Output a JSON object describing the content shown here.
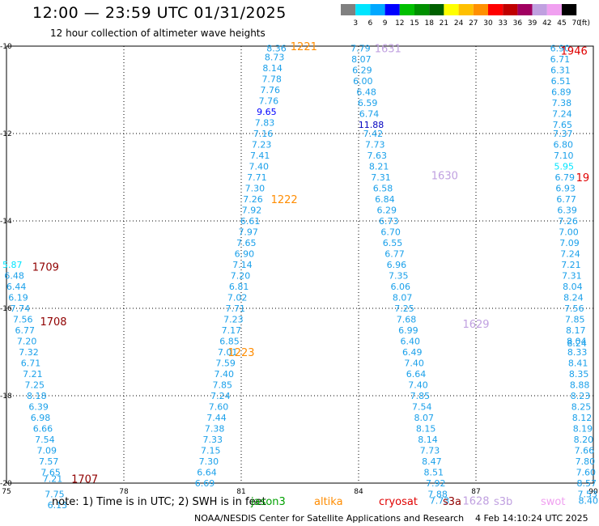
{
  "title": "12:00 — 23:59 UTC 01/31/2025",
  "subtitle": "12 hour collection of altimeter wave heights",
  "note": "note:  1) Time is in UTC; 2) SWH is in feet",
  "credit": "NOAA/NESDIS Center for Satellite Applications and Research",
  "generated": "4 Feb 14:10:24 UTC 2025",
  "satellites": [
    {
      "name": "jason3",
      "color": "#00a000"
    },
    {
      "name": "altika",
      "color": "#ff8c00"
    },
    {
      "name": "cryosat",
      "color": "#e00000"
    },
    {
      "name": "s3a",
      "color": "#900000"
    },
    {
      "name": "s3b",
      "color": "#c0a0e0"
    },
    {
      "name": "swot",
      "color": "#f0a0f0"
    }
  ],
  "colorbar": {
    "unit": "(ft)",
    "levels": [
      "3",
      "6",
      "9",
      "12",
      "15",
      "18",
      "21",
      "24",
      "27",
      "30",
      "33",
      "36",
      "39",
      "42",
      "45",
      "70"
    ],
    "colors": [
      "#808080",
      "#00e5ff",
      "#00a8ff",
      "#0000ff",
      "#00c000",
      "#009000",
      "#006000",
      "#ffff00",
      "#ffc000",
      "#ff9000",
      "#ff0000",
      "#c00000",
      "#a00060",
      "#c0a0e0",
      "#f0a0f0",
      "#000000"
    ]
  },
  "chart_data": {
    "type": "scatter",
    "title": "12:00 — 23:59 UTC 01/31/2025",
    "subtitle": "12 hour collection of altimeter wave heights",
    "x_ticks": [
      75,
      78,
      81,
      84,
      87,
      90
    ],
    "y_ticks": [
      -10,
      -12,
      -14,
      -16,
      -18,
      -20
    ],
    "xlim": [
      75,
      90
    ],
    "ylim": [
      -20,
      -10
    ],
    "grid": true,
    "point_labels": [
      {
        "x": 81.9,
        "y": -10.05,
        "v": "8.36"
      },
      {
        "x": 81.85,
        "y": -10.25,
        "v": "8.73"
      },
      {
        "x": 81.8,
        "y": -10.5,
        "v": "8.14"
      },
      {
        "x": 81.78,
        "y": -10.75,
        "v": "7.78"
      },
      {
        "x": 81.74,
        "y": -11.0,
        "v": "7.76"
      },
      {
        "x": 81.7,
        "y": -11.25,
        "v": "7.76"
      },
      {
        "x": 81.65,
        "y": -11.5,
        "v": "9.65",
        "c": "#0000ff"
      },
      {
        "x": 81.6,
        "y": -11.75,
        "v": "7.83"
      },
      {
        "x": 81.56,
        "y": -12.0,
        "v": "7.16"
      },
      {
        "x": 81.52,
        "y": -12.25,
        "v": "7.23"
      },
      {
        "x": 81.48,
        "y": -12.5,
        "v": "7.41"
      },
      {
        "x": 81.45,
        "y": -12.75,
        "v": "7.40"
      },
      {
        "x": 81.4,
        "y": -13.0,
        "v": "7.71"
      },
      {
        "x": 81.35,
        "y": -13.25,
        "v": "7.30"
      },
      {
        "x": 81.3,
        "y": -13.5,
        "v": "7.26"
      },
      {
        "x": 81.27,
        "y": -13.75,
        "v": "7.92"
      },
      {
        "x": 81.23,
        "y": -14.0,
        "v": "6.61"
      },
      {
        "x": 81.18,
        "y": -14.25,
        "v": "7.97"
      },
      {
        "x": 81.13,
        "y": -14.5,
        "v": "7.65"
      },
      {
        "x": 81.08,
        "y": -14.75,
        "v": "6.90"
      },
      {
        "x": 81.03,
        "y": -15.0,
        "v": "7.14"
      },
      {
        "x": 80.98,
        "y": -15.25,
        "v": "7.20"
      },
      {
        "x": 80.94,
        "y": -15.5,
        "v": "6.81"
      },
      {
        "x": 80.9,
        "y": -15.75,
        "v": "7.02"
      },
      {
        "x": 80.85,
        "y": -16.0,
        "v": "7.71"
      },
      {
        "x": 80.8,
        "y": -16.25,
        "v": "7.23"
      },
      {
        "x": 80.75,
        "y": -16.5,
        "v": "7.17"
      },
      {
        "x": 80.7,
        "y": -16.75,
        "v": "6.85"
      },
      {
        "x": 80.65,
        "y": -17.0,
        "v": "7.01"
      },
      {
        "x": 80.6,
        "y": -17.25,
        "v": "7.59"
      },
      {
        "x": 80.56,
        "y": -17.5,
        "v": "7.40"
      },
      {
        "x": 80.52,
        "y": -17.75,
        "v": "7.85"
      },
      {
        "x": 80.47,
        "y": -18.0,
        "v": "7.24"
      },
      {
        "x": 80.42,
        "y": -18.25,
        "v": "7.60"
      },
      {
        "x": 80.37,
        "y": -18.5,
        "v": "7.44"
      },
      {
        "x": 80.32,
        "y": -18.75,
        "v": "7.38"
      },
      {
        "x": 80.27,
        "y": -19.0,
        "v": "7.33"
      },
      {
        "x": 80.22,
        "y": -19.25,
        "v": "7.15"
      },
      {
        "x": 80.17,
        "y": -19.5,
        "v": "7.30"
      },
      {
        "x": 80.12,
        "y": -19.75,
        "v": "6.64"
      },
      {
        "x": 80.07,
        "y": -20.0,
        "v": "6.69"
      },
      {
        "x": 84.05,
        "y": -10.05,
        "v": "7.79"
      },
      {
        "x": 84.07,
        "y": -10.3,
        "v": "8.07"
      },
      {
        "x": 84.09,
        "y": -10.55,
        "v": "6.29"
      },
      {
        "x": 84.11,
        "y": -10.8,
        "v": "6.00"
      },
      {
        "x": 84.2,
        "y": -11.05,
        "v": "6.48"
      },
      {
        "x": 84.23,
        "y": -11.3,
        "v": "6.59"
      },
      {
        "x": 84.27,
        "y": -11.55,
        "v": "6.74"
      },
      {
        "x": 84.32,
        "y": -11.8,
        "v": "11.88",
        "c": "#0000c0"
      },
      {
        "x": 84.37,
        "y": -12.0,
        "v": "7.42"
      },
      {
        "x": 84.42,
        "y": -12.25,
        "v": "7.73"
      },
      {
        "x": 84.47,
        "y": -12.5,
        "v": "7.63"
      },
      {
        "x": 84.52,
        "y": -12.75,
        "v": "8.21"
      },
      {
        "x": 84.57,
        "y": -13.0,
        "v": "7.31"
      },
      {
        "x": 84.62,
        "y": -13.25,
        "v": "6.58"
      },
      {
        "x": 84.67,
        "y": -13.5,
        "v": "6.84"
      },
      {
        "x": 84.72,
        "y": -13.75,
        "v": "6.29"
      },
      {
        "x": 84.77,
        "y": -14.0,
        "v": "6.73"
      },
      {
        "x": 84.82,
        "y": -14.25,
        "v": "6.70"
      },
      {
        "x": 84.87,
        "y": -14.5,
        "v": "6.55"
      },
      {
        "x": 84.92,
        "y": -14.75,
        "v": "6.77"
      },
      {
        "x": 84.97,
        "y": -15.0,
        "v": "6.96"
      },
      {
        "x": 85.02,
        "y": -15.25,
        "v": "7.35"
      },
      {
        "x": 85.07,
        "y": -15.5,
        "v": "6.06"
      },
      {
        "x": 85.12,
        "y": -15.75,
        "v": "8.07"
      },
      {
        "x": 85.17,
        "y": -16.0,
        "v": "7.25"
      },
      {
        "x": 85.22,
        "y": -16.25,
        "v": "7.68"
      },
      {
        "x": 85.27,
        "y": -16.5,
        "v": "6.99"
      },
      {
        "x": 85.32,
        "y": -16.75,
        "v": "6.40"
      },
      {
        "x": 85.37,
        "y": -17.0,
        "v": "6.49"
      },
      {
        "x": 85.42,
        "y": -17.25,
        "v": "7.40"
      },
      {
        "x": 85.47,
        "y": -17.5,
        "v": "6.64"
      },
      {
        "x": 85.52,
        "y": -17.75,
        "v": "7.40"
      },
      {
        "x": 85.57,
        "y": -18.0,
        "v": "7.85"
      },
      {
        "x": 85.62,
        "y": -18.25,
        "v": "7.54"
      },
      {
        "x": 85.67,
        "y": -18.5,
        "v": "8.07"
      },
      {
        "x": 85.72,
        "y": -18.75,
        "v": "8.15"
      },
      {
        "x": 85.77,
        "y": -19.0,
        "v": "8.14"
      },
      {
        "x": 85.82,
        "y": -19.25,
        "v": "7.73"
      },
      {
        "x": 85.87,
        "y": -19.5,
        "v": "8.47"
      },
      {
        "x": 85.92,
        "y": -19.75,
        "v": "8.51"
      },
      {
        "x": 85.97,
        "y": -20.0,
        "v": "7.92"
      },
      {
        "x": 86.02,
        "y": -20.25,
        "v": "7.88"
      },
      {
        "x": 86.07,
        "y": -20.4,
        "v": "7.73"
      },
      {
        "x": 89.15,
        "y": -10.05,
        "v": "6.90"
      },
      {
        "x": 89.15,
        "y": -10.3,
        "v": "6.71"
      },
      {
        "x": 89.16,
        "y": -10.55,
        "v": "6.31"
      },
      {
        "x": 89.17,
        "y": -10.8,
        "v": "6.51"
      },
      {
        "x": 89.18,
        "y": -11.05,
        "v": "6.89"
      },
      {
        "x": 89.19,
        "y": -11.3,
        "v": "7.38"
      },
      {
        "x": 89.2,
        "y": -11.55,
        "v": "7.24"
      },
      {
        "x": 89.21,
        "y": -11.8,
        "v": "7.65"
      },
      {
        "x": 89.22,
        "y": -12.0,
        "v": "7.37"
      },
      {
        "x": 89.23,
        "y": -12.25,
        "v": "6.80"
      },
      {
        "x": 89.24,
        "y": -12.5,
        "v": "7.10"
      },
      {
        "x": 89.25,
        "y": -12.75,
        "v": "5.95",
        "c": "#00e5ff"
      },
      {
        "x": 89.27,
        "y": -13.0,
        "v": "6.79"
      },
      {
        "x": 89.29,
        "y": -13.25,
        "v": "6.93"
      },
      {
        "x": 89.31,
        "y": -13.5,
        "v": "6.77"
      },
      {
        "x": 89.33,
        "y": -13.75,
        "v": "6.39"
      },
      {
        "x": 89.35,
        "y": -14.0,
        "v": "7.26"
      },
      {
        "x": 89.37,
        "y": -14.25,
        "v": "7.00"
      },
      {
        "x": 89.39,
        "y": -14.5,
        "v": "7.09"
      },
      {
        "x": 89.41,
        "y": -14.75,
        "v": "7.24"
      },
      {
        "x": 89.43,
        "y": -15.0,
        "v": "7.21"
      },
      {
        "x": 89.45,
        "y": -15.25,
        "v": "7.31"
      },
      {
        "x": 89.47,
        "y": -15.5,
        "v": "8.04"
      },
      {
        "x": 89.49,
        "y": -15.75,
        "v": "8.24"
      },
      {
        "x": 89.51,
        "y": -16.0,
        "v": "7.56"
      },
      {
        "x": 89.53,
        "y": -16.25,
        "v": "7.85"
      },
      {
        "x": 89.55,
        "y": -16.5,
        "v": "8.17"
      },
      {
        "x": 89.57,
        "y": -16.75,
        "v": "8.04"
      },
      {
        "x": 89.58,
        "y": -16.8,
        "v": "8.24"
      },
      {
        "x": 89.59,
        "y": -17.0,
        "v": "8.33"
      },
      {
        "x": 89.61,
        "y": -17.25,
        "v": "8.41"
      },
      {
        "x": 89.63,
        "y": -17.5,
        "v": "8.35"
      },
      {
        "x": 89.65,
        "y": -17.75,
        "v": "8.88"
      },
      {
        "x": 89.67,
        "y": -18.0,
        "v": "8.23"
      },
      {
        "x": 89.69,
        "y": -18.25,
        "v": "8.25"
      },
      {
        "x": 89.71,
        "y": -18.5,
        "v": "8.12"
      },
      {
        "x": 89.73,
        "y": -18.75,
        "v": "8.19"
      },
      {
        "x": 89.75,
        "y": -19.0,
        "v": "8.20"
      },
      {
        "x": 89.77,
        "y": -19.25,
        "v": "7.66"
      },
      {
        "x": 89.79,
        "y": -19.5,
        "v": "7.80"
      },
      {
        "x": 89.81,
        "y": -19.75,
        "v": "7.60"
      },
      {
        "x": 89.83,
        "y": -20.0,
        "v": "8.57"
      },
      {
        "x": 89.85,
        "y": -20.25,
        "v": "7.53"
      },
      {
        "x": 89.87,
        "y": -20.4,
        "v": "8.40"
      },
      {
        "x": 75.15,
        "y": -15.0,
        "v": "5.87",
        "c": "#00e5ff"
      },
      {
        "x": 75.2,
        "y": -15.25,
        "v": "6.48"
      },
      {
        "x": 75.25,
        "y": -15.5,
        "v": "6.44"
      },
      {
        "x": 75.3,
        "y": -15.75,
        "v": "6.19"
      },
      {
        "x": 75.35,
        "y": -16.0,
        "v": "7.74"
      },
      {
        "x": 75.42,
        "y": -16.25,
        "v": "7.56"
      },
      {
        "x": 75.47,
        "y": -16.5,
        "v": "6.77"
      },
      {
        "x": 75.52,
        "y": -16.75,
        "v": "7.20"
      },
      {
        "x": 75.57,
        "y": -17.0,
        "v": "7.32"
      },
      {
        "x": 75.62,
        "y": -17.25,
        "v": "6.71"
      },
      {
        "x": 75.67,
        "y": -17.5,
        "v": "7.21"
      },
      {
        "x": 75.72,
        "y": -17.75,
        "v": "7.25"
      },
      {
        "x": 75.77,
        "y": -18.0,
        "v": "8.18"
      },
      {
        "x": 75.82,
        "y": -18.25,
        "v": "6.39"
      },
      {
        "x": 75.87,
        "y": -18.5,
        "v": "6.98"
      },
      {
        "x": 75.93,
        "y": -18.75,
        "v": "6.66"
      },
      {
        "x": 75.98,
        "y": -19.0,
        "v": "7.54"
      },
      {
        "x": 76.03,
        "y": -19.25,
        "v": "7.09"
      },
      {
        "x": 76.08,
        "y": -19.5,
        "v": "7.57"
      },
      {
        "x": 76.13,
        "y": -19.75,
        "v": "7.65"
      },
      {
        "x": 76.18,
        "y": -19.9,
        "v": "7.21"
      },
      {
        "x": 76.23,
        "y": -20.25,
        "v": "7.75"
      },
      {
        "x": 76.3,
        "y": -20.5,
        "v": "6.13"
      }
    ],
    "pass_times": [
      {
        "x": 82.6,
        "y": -10.0,
        "t": "1221",
        "sat": "altika"
      },
      {
        "x": 82.1,
        "y": -13.5,
        "t": "1222",
        "sat": "altika"
      },
      {
        "x": 81.0,
        "y": -17.0,
        "t": "1223",
        "sat": "altika"
      },
      {
        "x": 84.75,
        "y": -10.05,
        "t": "1631",
        "sat": "s3b"
      },
      {
        "x": 86.2,
        "y": -12.95,
        "t": "1630",
        "sat": "s3b"
      },
      {
        "x": 87.0,
        "y": -16.35,
        "t": "1629",
        "sat": "s3b"
      },
      {
        "x": 87.0,
        "y": -20.4,
        "t": "1628",
        "sat": "s3b"
      },
      {
        "x": 76.0,
        "y": -15.05,
        "t": "1709",
        "sat": "s3a"
      },
      {
        "x": 76.2,
        "y": -16.3,
        "t": "1708",
        "sat": "s3a"
      },
      {
        "x": 77.0,
        "y": -19.9,
        "t": "1707",
        "sat": "s3a"
      },
      {
        "x": 89.85,
        "y": -10.1,
        "t": "1946",
        "sat": "cryosat"
      },
      {
        "x": 89.9,
        "y": -13.0,
        "t": "19",
        "sat": "cryosat"
      }
    ]
  }
}
